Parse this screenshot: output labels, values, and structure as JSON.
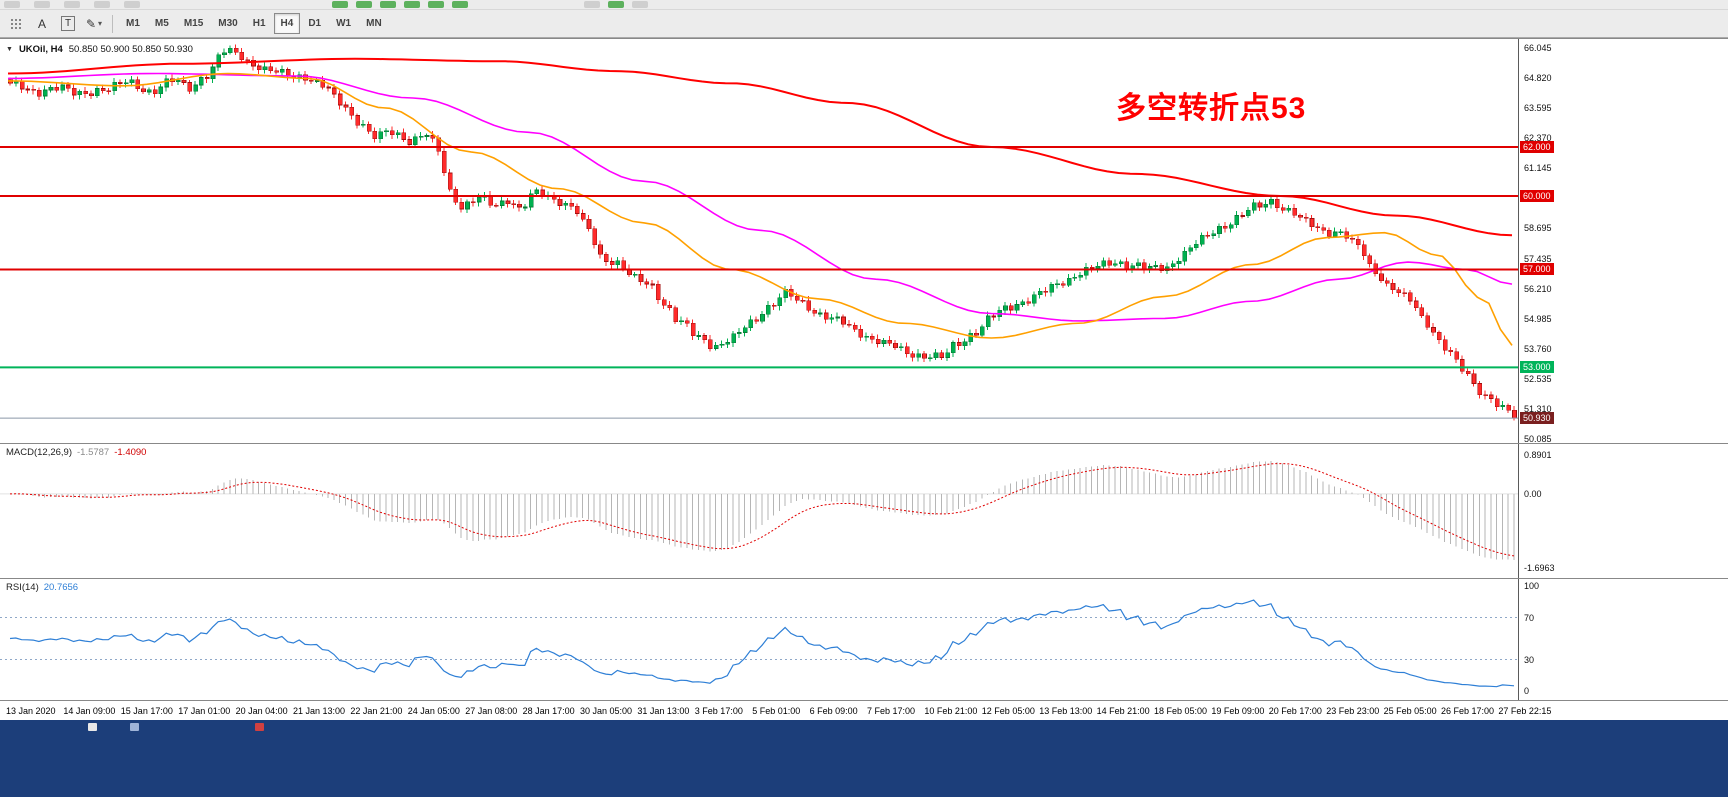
{
  "toolbar": {
    "a_button": "A",
    "t_button": "T",
    "timeframes": [
      {
        "label": "M1",
        "active": false
      },
      {
        "label": "M5",
        "active": false
      },
      {
        "label": "M15",
        "active": false
      },
      {
        "label": "M30",
        "active": false
      },
      {
        "label": "H1",
        "active": false
      },
      {
        "label": "H4",
        "active": true
      },
      {
        "label": "D1",
        "active": false
      },
      {
        "label": "W1",
        "active": false
      },
      {
        "label": "MN",
        "active": false
      }
    ]
  },
  "chart_data": {
    "type": "candlestick",
    "symbol": "UKOil",
    "period": "H4",
    "symbol_period_label": "UKOil, H4",
    "ohlc_text": "50.850 50.900 50.850 50.930",
    "annotation": "多空转折点53",
    "annotation_color": "#ff0000",
    "bid": {
      "value": 50.93,
      "label": "50.930",
      "line_color": "#8a97a8",
      "badge_color": "#7a1f1f"
    },
    "price_axis_ticks": [
      "66.045",
      "64.820",
      "63.595",
      "62.370",
      "61.145",
      "58.695",
      "57.435",
      "56.210",
      "54.985",
      "53.760",
      "52.535",
      "51.310",
      "50.085"
    ],
    "price_axis_values": [
      66.045,
      64.82,
      63.595,
      62.37,
      61.145,
      58.695,
      57.435,
      56.21,
      54.985,
      53.76,
      52.535,
      51.31,
      50.085
    ],
    "horizontal_lines": [
      {
        "value": 62.0,
        "label": "62.000",
        "color": "#e00000"
      },
      {
        "value": 60.0,
        "label": "60.000",
        "color": "#e00000"
      },
      {
        "value": 57.0,
        "label": "57.000",
        "color": "#e00000"
      },
      {
        "value": 53.0,
        "label": "53.000",
        "color": "#00b45a"
      }
    ],
    "candles": {
      "count": 260,
      "up_color": "#00b050",
      "down_color": "#ff2b2b",
      "close_anchors": [
        [
          0,
          64.6
        ],
        [
          4,
          64.2
        ],
        [
          8,
          64.5
        ],
        [
          12,
          64.1
        ],
        [
          16,
          64.4
        ],
        [
          20,
          64.6
        ],
        [
          24,
          64.3
        ],
        [
          28,
          64.7
        ],
        [
          31,
          64.4
        ],
        [
          34,
          65.0
        ],
        [
          37,
          65.9
        ],
        [
          39,
          65.8
        ],
        [
          42,
          65.4
        ],
        [
          45,
          65.1
        ],
        [
          48,
          64.9
        ],
        [
          51,
          64.9
        ],
        [
          54,
          64.5
        ],
        [
          57,
          63.8
        ],
        [
          60,
          63.1
        ],
        [
          63,
          62.4
        ],
        [
          66,
          62.6
        ],
        [
          69,
          62.3
        ],
        [
          72,
          62.5
        ],
        [
          74,
          61.8
        ],
        [
          76,
          60.2
        ],
        [
          78,
          59.6
        ],
        [
          81,
          59.9
        ],
        [
          84,
          59.6
        ],
        [
          86,
          59.9
        ],
        [
          88,
          59.5
        ],
        [
          91,
          60.1
        ],
        [
          94,
          59.9
        ],
        [
          97,
          59.6
        ],
        [
          100,
          58.6
        ],
        [
          102,
          57.5
        ],
        [
          105,
          57.3
        ],
        [
          108,
          56.6
        ],
        [
          111,
          56.3
        ],
        [
          113,
          55.6
        ],
        [
          116,
          54.8
        ],
        [
          119,
          54.2
        ],
        [
          122,
          53.9
        ],
        [
          125,
          54.2
        ],
        [
          128,
          54.8
        ],
        [
          131,
          55.5
        ],
        [
          134,
          56.0
        ],
        [
          137,
          55.6
        ],
        [
          140,
          55.2
        ],
        [
          143,
          54.9
        ],
        [
          146,
          54.5
        ],
        [
          149,
          54.2
        ],
        [
          152,
          53.9
        ],
        [
          155,
          53.6
        ],
        [
          158,
          53.5
        ],
        [
          161,
          53.4
        ],
        [
          164,
          54.0
        ],
        [
          167,
          54.5
        ],
        [
          170,
          55.1
        ],
        [
          173,
          55.5
        ],
        [
          176,
          55.8
        ],
        [
          179,
          56.1
        ],
        [
          182,
          56.5
        ],
        [
          185,
          56.9
        ],
        [
          188,
          57.1
        ],
        [
          191,
          57.3
        ],
        [
          194,
          57.2
        ],
        [
          197,
          57.0
        ],
        [
          200,
          57.1
        ],
        [
          203,
          57.7
        ],
        [
          206,
          58.2
        ],
        [
          209,
          58.7
        ],
        [
          212,
          59.1
        ],
        [
          215,
          59.5
        ],
        [
          218,
          59.8
        ],
        [
          221,
          59.4
        ],
        [
          224,
          58.9
        ],
        [
          227,
          58.6
        ],
        [
          230,
          58.5
        ],
        [
          233,
          57.9
        ],
        [
          236,
          56.9
        ],
        [
          239,
          56.2
        ],
        [
          242,
          55.7
        ],
        [
          245,
          54.8
        ],
        [
          248,
          53.8
        ],
        [
          251,
          52.9
        ],
        [
          254,
          52.1
        ],
        [
          256,
          51.7
        ],
        [
          258,
          51.3
        ],
        [
          260,
          50.93
        ]
      ]
    },
    "moving_averages": [
      {
        "name": "ma-slow-red",
        "color": "#ff0000",
        "width": 2,
        "anchors": [
          [
            0,
            65.0
          ],
          [
            30,
            65.4
          ],
          [
            60,
            65.6
          ],
          [
            85,
            65.5
          ],
          [
            105,
            65.1
          ],
          [
            125,
            64.6
          ],
          [
            145,
            63.8
          ],
          [
            170,
            62.0
          ],
          [
            195,
            60.9
          ],
          [
            220,
            60.0
          ],
          [
            240,
            59.2
          ],
          [
            260,
            58.4
          ]
        ]
      },
      {
        "name": "ma-medium-magenta",
        "color": "#ff00ff",
        "width": 1.6,
        "anchors": [
          [
            0,
            64.8
          ],
          [
            25,
            65.0
          ],
          [
            50,
            64.9
          ],
          [
            70,
            64.0
          ],
          [
            90,
            62.6
          ],
          [
            110,
            60.6
          ],
          [
            130,
            58.6
          ],
          [
            150,
            56.6
          ],
          [
            170,
            55.2
          ],
          [
            185,
            54.9
          ],
          [
            200,
            55.0
          ],
          [
            215,
            55.7
          ],
          [
            230,
            56.6
          ],
          [
            242,
            57.3
          ],
          [
            252,
            57.0
          ],
          [
            260,
            56.4
          ]
        ]
      },
      {
        "name": "ma-fast-orange",
        "color": "#ffa000",
        "width": 1.6,
        "anchors": [
          [
            0,
            64.7
          ],
          [
            20,
            64.5
          ],
          [
            38,
            65.0
          ],
          [
            52,
            64.8
          ],
          [
            65,
            63.6
          ],
          [
            80,
            61.8
          ],
          [
            95,
            60.3
          ],
          [
            110,
            58.9
          ],
          [
            125,
            57.0
          ],
          [
            140,
            55.8
          ],
          [
            155,
            54.8
          ],
          [
            170,
            54.2
          ],
          [
            185,
            54.8
          ],
          [
            200,
            55.9
          ],
          [
            215,
            57.2
          ],
          [
            228,
            58.3
          ],
          [
            238,
            58.5
          ],
          [
            247,
            57.6
          ],
          [
            255,
            55.8
          ],
          [
            260,
            53.9
          ]
        ]
      }
    ],
    "time_ticks": [
      "13 Jan 2020",
      "14 Jan 09:00",
      "15 Jan 17:00",
      "17 Jan 01:00",
      "20 Jan 04:00",
      "21 Jan 13:00",
      "22 Jan 21:00",
      "24 Jan 05:00",
      "27 Jan 08:00",
      "28 Jan 17:00",
      "30 Jan 05:00",
      "31 Jan 13:00",
      "3 Feb 17:00",
      "5 Feb 01:00",
      "6 Feb 09:00",
      "7 Feb 17:00",
      "10 Feb 21:00",
      "12 Feb 05:00",
      "13 Feb 13:00",
      "14 Feb 21:00",
      "18 Feb 05:00",
      "19 Feb 09:00",
      "20 Feb 17:00",
      "23 Feb 23:00",
      "25 Feb 05:00",
      "26 Feb 17:00",
      "27 Feb 22:15"
    ],
    "indicators": {
      "macd": {
        "label": "MACD(12,26,9)",
        "value_main": "-1.5787",
        "value_signal": "-1.4090",
        "axis_labels": [
          "0.8901",
          "0.00",
          "-1.6963"
        ],
        "histogram_color": "#b6b6b6",
        "signal_color": "#e00000"
      },
      "rsi": {
        "label": "RSI(14)",
        "value": "20.7656",
        "axis_labels": [
          "100",
          "70",
          "30",
          "0"
        ],
        "levels": [
          70,
          30
        ],
        "line_color": "#2e7fd6"
      }
    }
  }
}
